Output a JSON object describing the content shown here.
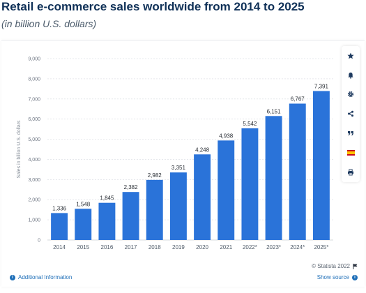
{
  "header": {
    "title": "Retail e-commerce sales worldwide from 2014 to 2025",
    "subtitle": "(in billion U.S. dollars)"
  },
  "colors": {
    "bar": "#2a73d9",
    "title": "#0f3057",
    "link": "#1f6fb8"
  },
  "toolbar": {
    "icons": [
      "star-icon",
      "bell-icon",
      "gear-icon",
      "share-icon",
      "quote-icon",
      "spain-flag-icon",
      "print-icon"
    ]
  },
  "footer": {
    "copyright": "© Statista 2022",
    "additional_info": "Additional Information",
    "show_source": "Show source"
  },
  "chart_data": {
    "type": "bar",
    "categories": [
      "2014",
      "2015",
      "2016",
      "2017",
      "2018",
      "2019",
      "2020",
      "2021",
      "2022*",
      "2023*",
      "2024*",
      "2025*"
    ],
    "values": [
      1336,
      1548,
      1845,
      2382,
      2982,
      3351,
      4248,
      4938,
      5542,
      6151,
      6767,
      7391
    ],
    "value_labels": [
      "1,336",
      "1,548",
      "1,845",
      "2,382",
      "2,982",
      "3,351",
      "4,248",
      "4,938",
      "5,542",
      "6,151",
      "6,767",
      "7,391"
    ],
    "ylabel": "Sales in billion U.S. dollars",
    "xlabel": "",
    "ylim": [
      0,
      9000
    ],
    "yticks": [
      0,
      1000,
      2000,
      3000,
      4000,
      5000,
      6000,
      7000,
      8000,
      9000
    ],
    "ytick_labels": [
      "0",
      "1,000",
      "2,000",
      "3,000",
      "4,000",
      "5,000",
      "6,000",
      "7,000",
      "8,000",
      "9,000"
    ],
    "grid": true,
    "legend": "none"
  }
}
